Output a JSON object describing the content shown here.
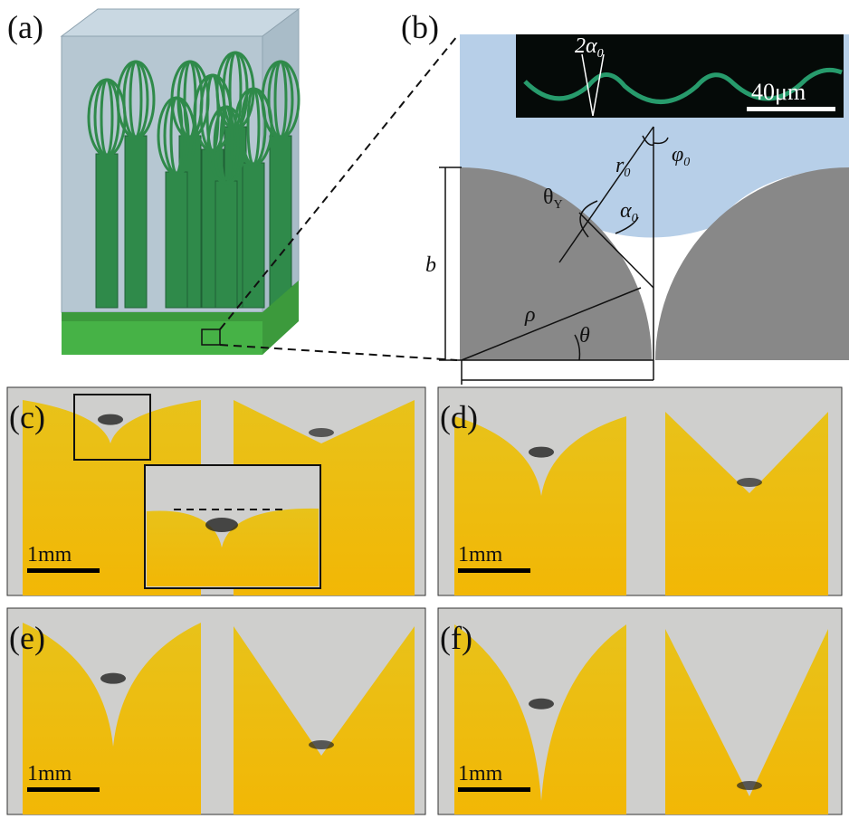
{
  "panels": {
    "a": {
      "label": "(a)"
    },
    "b": {
      "label": "(b)",
      "scale_bar": "40μm",
      "angle_label": {
        "symbol": "2α",
        "sub": "0"
      },
      "r": {
        "symbol": "r",
        "sub": "0"
      },
      "phi": {
        "symbol": "φ",
        "sub": "0"
      },
      "theta_y": {
        "symbol": "θ",
        "sub": "Y"
      },
      "alpha": {
        "symbol": "α",
        "sub": "0"
      },
      "b": "b",
      "rho": "ρ",
      "theta": "θ"
    },
    "c": {
      "label": "(c)",
      "scale_bar": "1mm"
    },
    "d": {
      "label": "(d)",
      "scale_bar": "1mm"
    },
    "e": {
      "label": "(e)",
      "scale_bar": "1mm"
    },
    "f": {
      "label": "(f)",
      "scale_bar": "1mm"
    }
  }
}
